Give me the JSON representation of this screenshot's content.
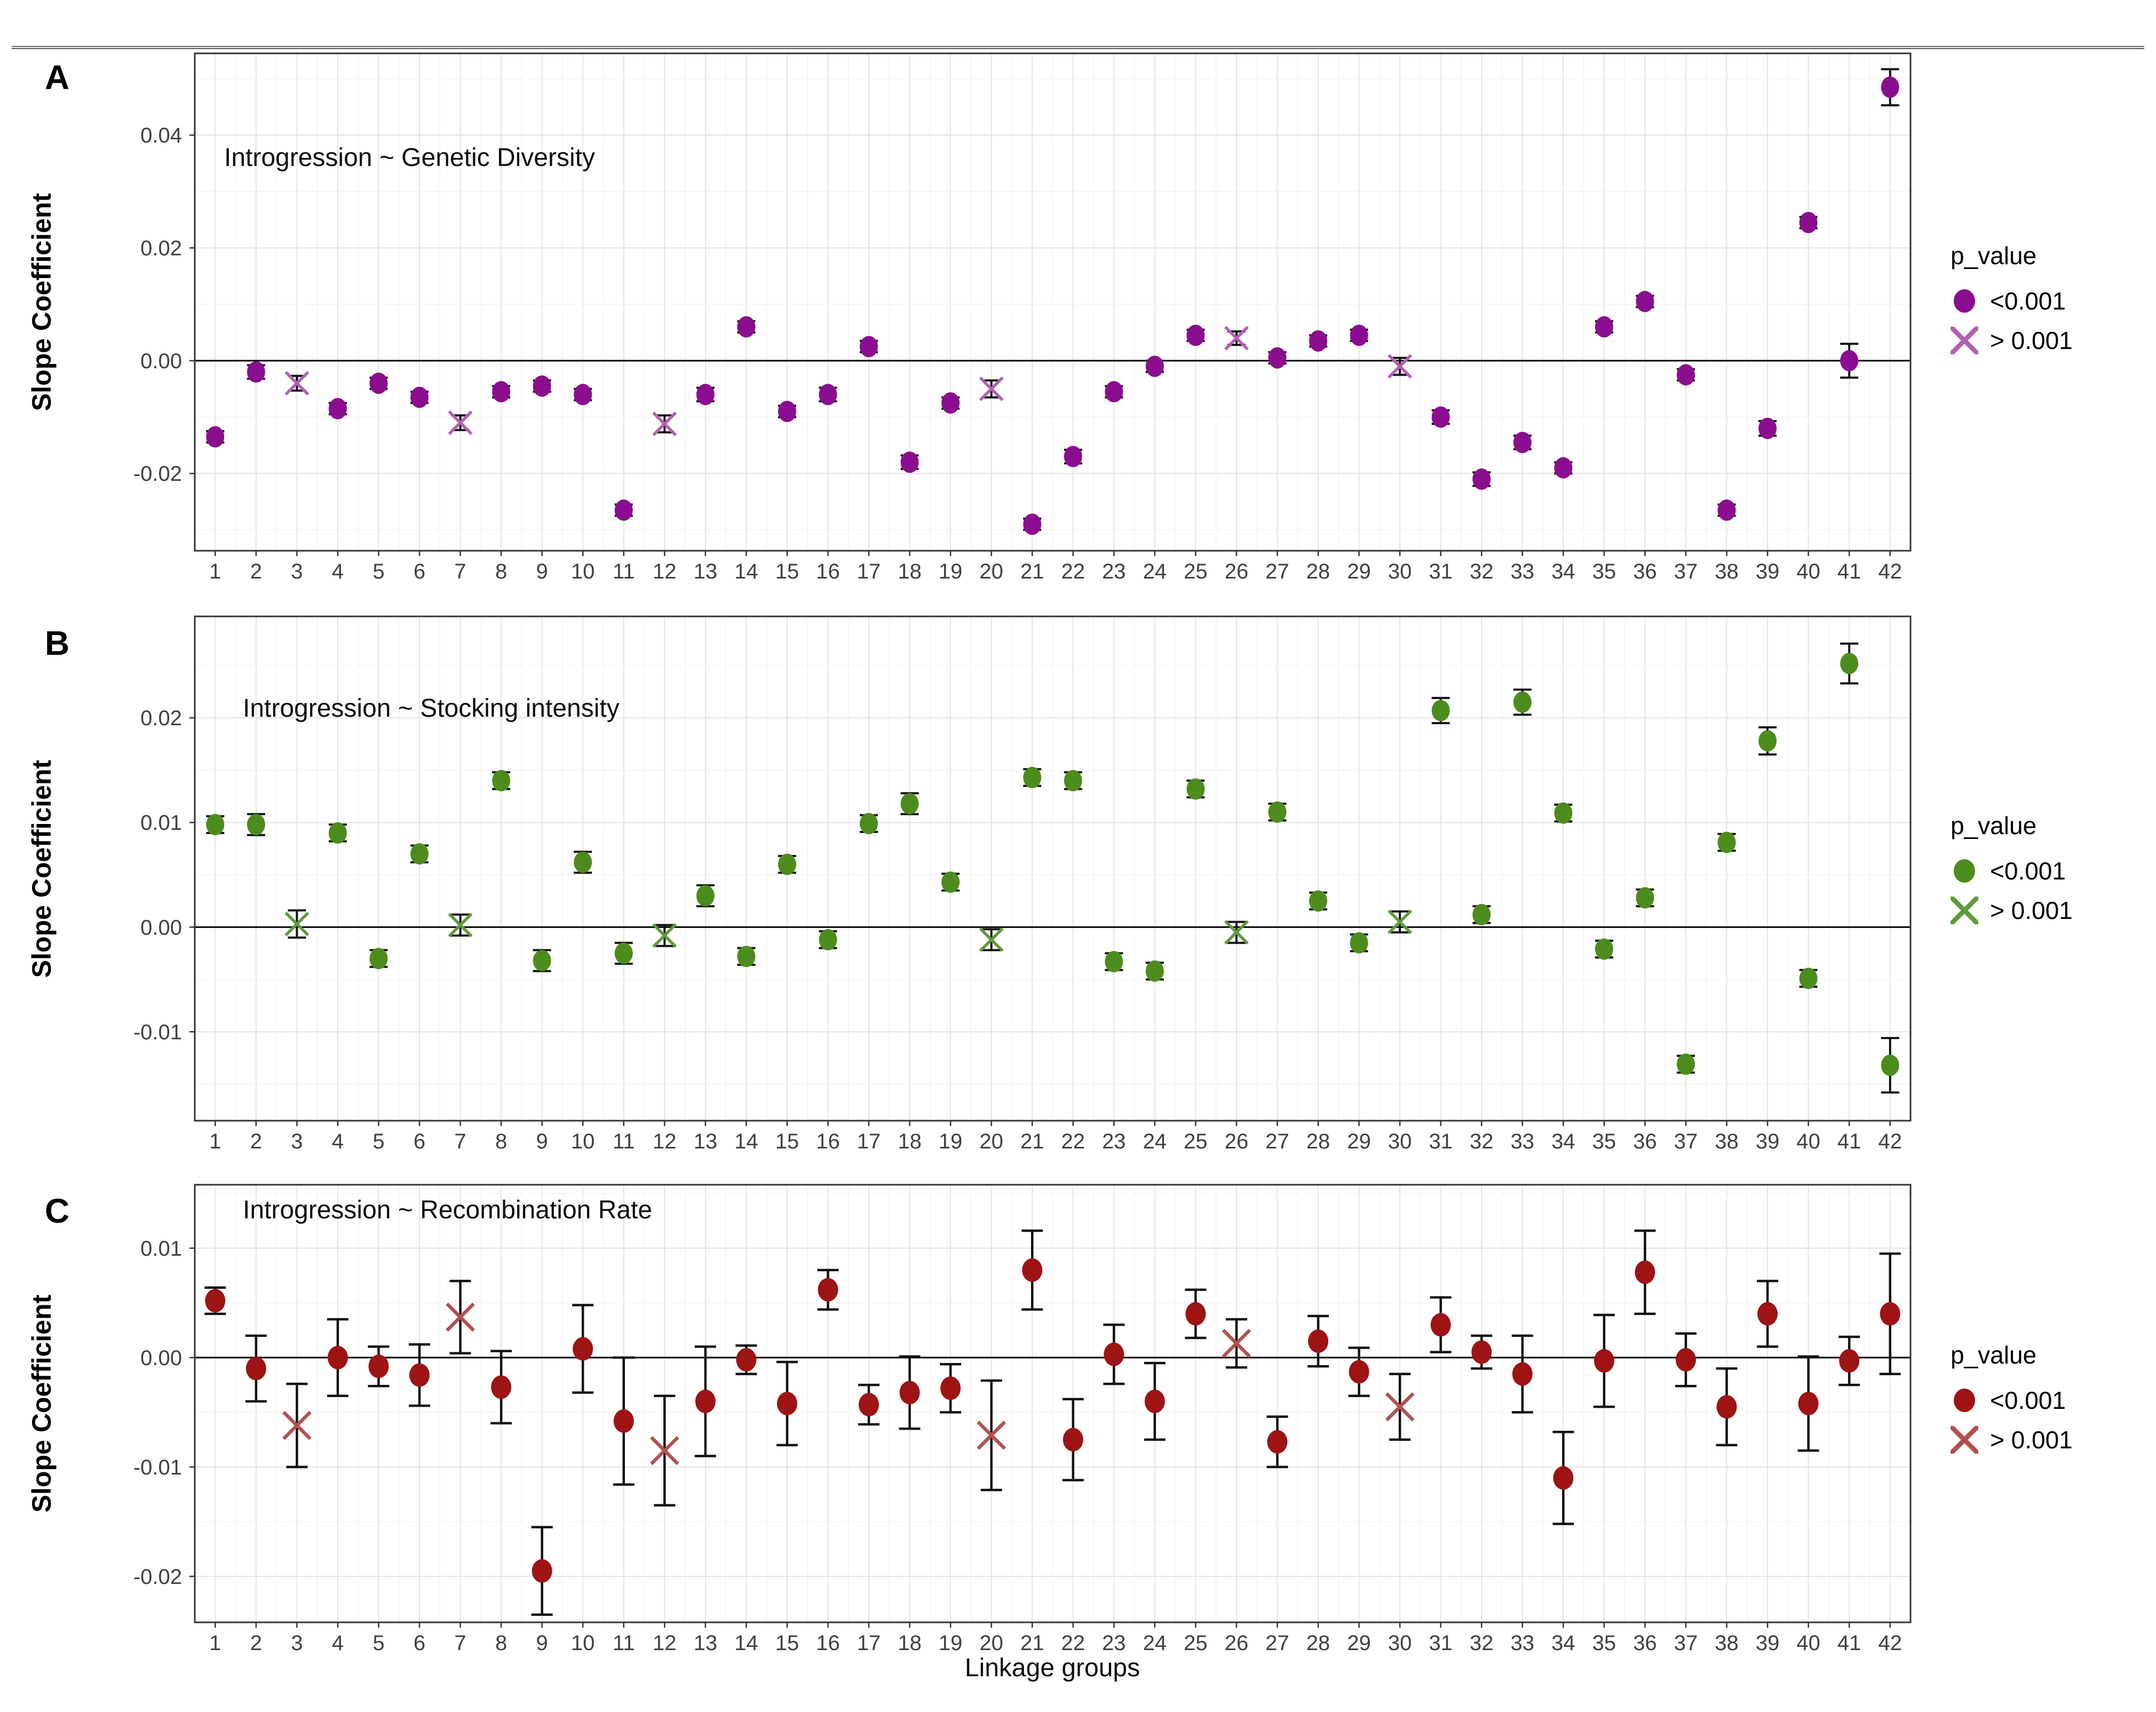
{
  "chart_data": {
    "type": "scatter",
    "xlabel": "Linkage groups",
    "ylabel": "Slope Coefficient",
    "x_range": [
      1,
      42
    ],
    "grid": "on",
    "legend": {
      "title": "p_value",
      "position": "right",
      "items": [
        {
          "label": "<0.001",
          "marker": "dot"
        },
        {
          "label": "> 0.001",
          "marker": "x"
        }
      ]
    },
    "panels": [
      {
        "panel_label": "A",
        "title": "Introgression ~ Genetic Diversity",
        "dot_color": "#8B0D8F",
        "x_color": "#B160B2",
        "ylim": [
          -0.0337,
          0.0545
        ],
        "yticks": [
          0.04,
          0.02,
          0.0,
          -0.02
        ],
        "yticks_minor": [
          0.05,
          0.03,
          0.01,
          -0.01,
          -0.03
        ],
        "points": [
          {
            "x": 1,
            "y": -0.0135,
            "err": 0.001,
            "p": "<0.001"
          },
          {
            "x": 2,
            "y": -0.002,
            "err": 0.0012,
            "p": "<0.001"
          },
          {
            "x": 3,
            "y": -0.004,
            "err": 0.0013,
            "p": "> 0.001"
          },
          {
            "x": 4,
            "y": -0.0085,
            "err": 0.001,
            "p": "<0.001"
          },
          {
            "x": 5,
            "y": -0.004,
            "err": 0.001,
            "p": "<0.001"
          },
          {
            "x": 6,
            "y": -0.0065,
            "err": 0.001,
            "p": "<0.001"
          },
          {
            "x": 7,
            "y": -0.011,
            "err": 0.0013,
            "p": "> 0.001"
          },
          {
            "x": 8,
            "y": -0.0055,
            "err": 0.001,
            "p": "<0.001"
          },
          {
            "x": 9,
            "y": -0.0045,
            "err": 0.001,
            "p": "<0.001"
          },
          {
            "x": 10,
            "y": -0.006,
            "err": 0.001,
            "p": "<0.001"
          },
          {
            "x": 11,
            "y": -0.0265,
            "err": 0.001,
            "p": "<0.001"
          },
          {
            "x": 12,
            "y": -0.0112,
            "err": 0.0015,
            "p": "> 0.001"
          },
          {
            "x": 13,
            "y": -0.006,
            "err": 0.0012,
            "p": "<0.001"
          },
          {
            "x": 14,
            "y": 0.006,
            "err": 0.001,
            "p": "<0.001"
          },
          {
            "x": 15,
            "y": -0.009,
            "err": 0.001,
            "p": "<0.001"
          },
          {
            "x": 16,
            "y": -0.006,
            "err": 0.0012,
            "p": "<0.001"
          },
          {
            "x": 17,
            "y": 0.0025,
            "err": 0.001,
            "p": "<0.001"
          },
          {
            "x": 18,
            "y": -0.018,
            "err": 0.0012,
            "p": "<0.001"
          },
          {
            "x": 19,
            "y": -0.0075,
            "err": 0.001,
            "p": "<0.001"
          },
          {
            "x": 20,
            "y": -0.005,
            "err": 0.0015,
            "p": "> 0.001"
          },
          {
            "x": 21,
            "y": -0.029,
            "err": 0.001,
            "p": "<0.001"
          },
          {
            "x": 22,
            "y": -0.017,
            "err": 0.0012,
            "p": "<0.001"
          },
          {
            "x": 23,
            "y": -0.0055,
            "err": 0.001,
            "p": "<0.001"
          },
          {
            "x": 24,
            "y": -0.001,
            "err": 0.001,
            "p": "<0.001"
          },
          {
            "x": 25,
            "y": 0.0045,
            "err": 0.001,
            "p": "<0.001"
          },
          {
            "x": 26,
            "y": 0.004,
            "err": 0.0012,
            "p": "> 0.001"
          },
          {
            "x": 27,
            "y": 0.0005,
            "err": 0.001,
            "p": "<0.001"
          },
          {
            "x": 28,
            "y": 0.0035,
            "err": 0.001,
            "p": "<0.001"
          },
          {
            "x": 29,
            "y": 0.0045,
            "err": 0.001,
            "p": "<0.001"
          },
          {
            "x": 30,
            "y": -0.001,
            "err": 0.0015,
            "p": "> 0.001"
          },
          {
            "x": 31,
            "y": -0.01,
            "err": 0.0012,
            "p": "<0.001"
          },
          {
            "x": 32,
            "y": -0.021,
            "err": 0.0012,
            "p": "<0.001"
          },
          {
            "x": 33,
            "y": -0.0145,
            "err": 0.0012,
            "p": "<0.001"
          },
          {
            "x": 34,
            "y": -0.019,
            "err": 0.001,
            "p": "<0.001"
          },
          {
            "x": 35,
            "y": 0.006,
            "err": 0.001,
            "p": "<0.001"
          },
          {
            "x": 36,
            "y": 0.0105,
            "err": 0.001,
            "p": "<0.001"
          },
          {
            "x": 37,
            "y": -0.0025,
            "err": 0.001,
            "p": "<0.001"
          },
          {
            "x": 38,
            "y": -0.0265,
            "err": 0.001,
            "p": "<0.001"
          },
          {
            "x": 39,
            "y": -0.012,
            "err": 0.0013,
            "p": "<0.001"
          },
          {
            "x": 40,
            "y": 0.0245,
            "err": 0.001,
            "p": "<0.001"
          },
          {
            "x": 41,
            "y": 0.0,
            "err": 0.003,
            "p": "<0.001"
          },
          {
            "x": 42,
            "y": 0.0485,
            "err": 0.0032,
            "p": "<0.001"
          }
        ]
      },
      {
        "panel_label": "B",
        "title": "Introgression ~ Stocking intensity",
        "dot_color": "#4C8C1C",
        "x_color": "#5E9A3C",
        "ylim": [
          -0.0185,
          0.0297
        ],
        "yticks": [
          0.02,
          0.01,
          0.0,
          -0.01
        ],
        "yticks_minor": [
          0.025,
          0.015,
          0.005,
          -0.005,
          -0.015
        ],
        "points": [
          {
            "x": 1,
            "y": 0.0098,
            "err": 0.0008,
            "p": "<0.001"
          },
          {
            "x": 2,
            "y": 0.0098,
            "err": 0.001,
            "p": "<0.001"
          },
          {
            "x": 3,
            "y": 0.0003,
            "err": 0.0013,
            "p": "> 0.001"
          },
          {
            "x": 4,
            "y": 0.009,
            "err": 0.0008,
            "p": "<0.001"
          },
          {
            "x": 5,
            "y": -0.003,
            "err": 0.0008,
            "p": "<0.001"
          },
          {
            "x": 6,
            "y": 0.007,
            "err": 0.0008,
            "p": "<0.001"
          },
          {
            "x": 7,
            "y": 0.0002,
            "err": 0.001,
            "p": "> 0.001"
          },
          {
            "x": 8,
            "y": 0.014,
            "err": 0.0008,
            "p": "<0.001"
          },
          {
            "x": 9,
            "y": -0.0032,
            "err": 0.001,
            "p": "<0.001"
          },
          {
            "x": 10,
            "y": 0.0062,
            "err": 0.001,
            "p": "<0.001"
          },
          {
            "x": 11,
            "y": -0.0025,
            "err": 0.001,
            "p": "<0.001"
          },
          {
            "x": 12,
            "y": -0.0008,
            "err": 0.001,
            "p": "> 0.001"
          },
          {
            "x": 13,
            "y": 0.003,
            "err": 0.001,
            "p": "<0.001"
          },
          {
            "x": 14,
            "y": -0.0028,
            "err": 0.0008,
            "p": "<0.001"
          },
          {
            "x": 15,
            "y": 0.006,
            "err": 0.0008,
            "p": "<0.001"
          },
          {
            "x": 16,
            "y": -0.0012,
            "err": 0.0008,
            "p": "<0.001"
          },
          {
            "x": 17,
            "y": 0.0099,
            "err": 0.0008,
            "p": "<0.001"
          },
          {
            "x": 18,
            "y": 0.0118,
            "err": 0.001,
            "p": "<0.001"
          },
          {
            "x": 19,
            "y": 0.0043,
            "err": 0.0008,
            "p": "<0.001"
          },
          {
            "x": 20,
            "y": -0.0012,
            "err": 0.001,
            "p": "> 0.001"
          },
          {
            "x": 21,
            "y": 0.0143,
            "err": 0.0008,
            "p": "<0.001"
          },
          {
            "x": 22,
            "y": 0.014,
            "err": 0.0008,
            "p": "<0.001"
          },
          {
            "x": 23,
            "y": -0.0033,
            "err": 0.0008,
            "p": "<0.001"
          },
          {
            "x": 24,
            "y": -0.0042,
            "err": 0.0008,
            "p": "<0.001"
          },
          {
            "x": 25,
            "y": 0.0132,
            "err": 0.0008,
            "p": "<0.001"
          },
          {
            "x": 26,
            "y": -0.0005,
            "err": 0.001,
            "p": "> 0.001"
          },
          {
            "x": 27,
            "y": 0.011,
            "err": 0.0008,
            "p": "<0.001"
          },
          {
            "x": 28,
            "y": 0.0025,
            "err": 0.0008,
            "p": "<0.001"
          },
          {
            "x": 29,
            "y": -0.0015,
            "err": 0.0008,
            "p": "<0.001"
          },
          {
            "x": 30,
            "y": 0.0005,
            "err": 0.001,
            "p": "> 0.001"
          },
          {
            "x": 31,
            "y": 0.0207,
            "err": 0.0012,
            "p": "<0.001"
          },
          {
            "x": 32,
            "y": 0.0012,
            "err": 0.0008,
            "p": "<0.001"
          },
          {
            "x": 33,
            "y": 0.0215,
            "err": 0.0012,
            "p": "<0.001"
          },
          {
            "x": 34,
            "y": 0.0109,
            "err": 0.0008,
            "p": "<0.001"
          },
          {
            "x": 35,
            "y": -0.0021,
            "err": 0.0008,
            "p": "<0.001"
          },
          {
            "x": 36,
            "y": 0.0028,
            "err": 0.0008,
            "p": "<0.001"
          },
          {
            "x": 37,
            "y": -0.0131,
            "err": 0.0008,
            "p": "<0.001"
          },
          {
            "x": 38,
            "y": 0.0081,
            "err": 0.0008,
            "p": "<0.001"
          },
          {
            "x": 39,
            "y": 0.0178,
            "err": 0.0013,
            "p": "<0.001"
          },
          {
            "x": 40,
            "y": -0.0049,
            "err": 0.0008,
            "p": "<0.001"
          },
          {
            "x": 41,
            "y": 0.0252,
            "err": 0.0019,
            "p": "<0.001"
          },
          {
            "x": 42,
            "y": -0.0132,
            "err": 0.0026,
            "p": "<0.001"
          }
        ]
      },
      {
        "panel_label": "C",
        "title": "Introgression ~ Recombination Rate",
        "dot_color": "#9E1313",
        "x_color": "#B15151",
        "ylim": [
          -0.0242,
          0.0158
        ],
        "yticks": [
          0.01,
          0.0,
          -0.01,
          -0.02
        ],
        "yticks_minor": [
          0.015,
          0.005,
          -0.005,
          -0.015
        ],
        "points": [
          {
            "x": 1,
            "y": 0.0052,
            "err": 0.0012,
            "p": "<0.001"
          },
          {
            "x": 2,
            "y": -0.001,
            "err": 0.003,
            "p": "<0.001"
          },
          {
            "x": 3,
            "y": -0.0062,
            "err": 0.0038,
            "p": "> 0.001"
          },
          {
            "x": 4,
            "y": 0.0,
            "err": 0.0035,
            "p": "<0.001"
          },
          {
            "x": 5,
            "y": -0.0008,
            "err": 0.0018,
            "p": "<0.001"
          },
          {
            "x": 6,
            "y": -0.0016,
            "err": 0.0028,
            "p": "<0.001"
          },
          {
            "x": 7,
            "y": 0.0037,
            "err": 0.0033,
            "p": "> 0.001"
          },
          {
            "x": 8,
            "y": -0.0027,
            "err": 0.0033,
            "p": "<0.001"
          },
          {
            "x": 9,
            "y": -0.0195,
            "err": 0.004,
            "p": "<0.001"
          },
          {
            "x": 10,
            "y": 0.0008,
            "err": 0.004,
            "p": "<0.001"
          },
          {
            "x": 11,
            "y": -0.0058,
            "err": 0.0058,
            "p": "<0.001"
          },
          {
            "x": 12,
            "y": -0.0085,
            "err": 0.005,
            "p": "> 0.001"
          },
          {
            "x": 13,
            "y": -0.004,
            "err": 0.005,
            "p": "<0.001"
          },
          {
            "x": 14,
            "y": -0.0002,
            "err": 0.0013,
            "p": "<0.001"
          },
          {
            "x": 15,
            "y": -0.0042,
            "err": 0.0038,
            "p": "<0.001"
          },
          {
            "x": 16,
            "y": 0.0062,
            "err": 0.0018,
            "p": "<0.001"
          },
          {
            "x": 17,
            "y": -0.0043,
            "err": 0.0018,
            "p": "<0.001"
          },
          {
            "x": 18,
            "y": -0.0032,
            "err": 0.0033,
            "p": "<0.001"
          },
          {
            "x": 19,
            "y": -0.0028,
            "err": 0.0022,
            "p": "<0.001"
          },
          {
            "x": 20,
            "y": -0.0071,
            "err": 0.005,
            "p": "> 0.001"
          },
          {
            "x": 21,
            "y": 0.008,
            "err": 0.0036,
            "p": "<0.001"
          },
          {
            "x": 22,
            "y": -0.0075,
            "err": 0.0037,
            "p": "<0.001"
          },
          {
            "x": 23,
            "y": 0.0003,
            "err": 0.0027,
            "p": "<0.001"
          },
          {
            "x": 24,
            "y": -0.004,
            "err": 0.0035,
            "p": "<0.001"
          },
          {
            "x": 25,
            "y": 0.004,
            "err": 0.0022,
            "p": "<0.001"
          },
          {
            "x": 26,
            "y": 0.0013,
            "err": 0.0022,
            "p": "> 0.001"
          },
          {
            "x": 27,
            "y": -0.0077,
            "err": 0.0023,
            "p": "<0.001"
          },
          {
            "x": 28,
            "y": 0.0015,
            "err": 0.0023,
            "p": "<0.001"
          },
          {
            "x": 29,
            "y": -0.0013,
            "err": 0.0022,
            "p": "<0.001"
          },
          {
            "x": 30,
            "y": -0.0045,
            "err": 0.003,
            "p": "> 0.001"
          },
          {
            "x": 31,
            "y": 0.003,
            "err": 0.0025,
            "p": "<0.001"
          },
          {
            "x": 32,
            "y": 0.0005,
            "err": 0.0015,
            "p": "<0.001"
          },
          {
            "x": 33,
            "y": -0.0015,
            "err": 0.0035,
            "p": "<0.001"
          },
          {
            "x": 34,
            "y": -0.011,
            "err": 0.0042,
            "p": "<0.001"
          },
          {
            "x": 35,
            "y": -0.0003,
            "err": 0.0042,
            "p": "<0.001"
          },
          {
            "x": 36,
            "y": 0.0078,
            "err": 0.0038,
            "p": "<0.001"
          },
          {
            "x": 37,
            "y": -0.0002,
            "err": 0.0024,
            "p": "<0.001"
          },
          {
            "x": 38,
            "y": -0.0045,
            "err": 0.0035,
            "p": "<0.001"
          },
          {
            "x": 39,
            "y": 0.004,
            "err": 0.003,
            "p": "<0.001"
          },
          {
            "x": 40,
            "y": -0.0042,
            "err": 0.0043,
            "p": "<0.001"
          },
          {
            "x": 41,
            "y": -0.0003,
            "err": 0.0022,
            "p": "<0.001"
          },
          {
            "x": 42,
            "y": 0.004,
            "err": 0.0055,
            "p": "<0.001"
          }
        ]
      }
    ]
  }
}
